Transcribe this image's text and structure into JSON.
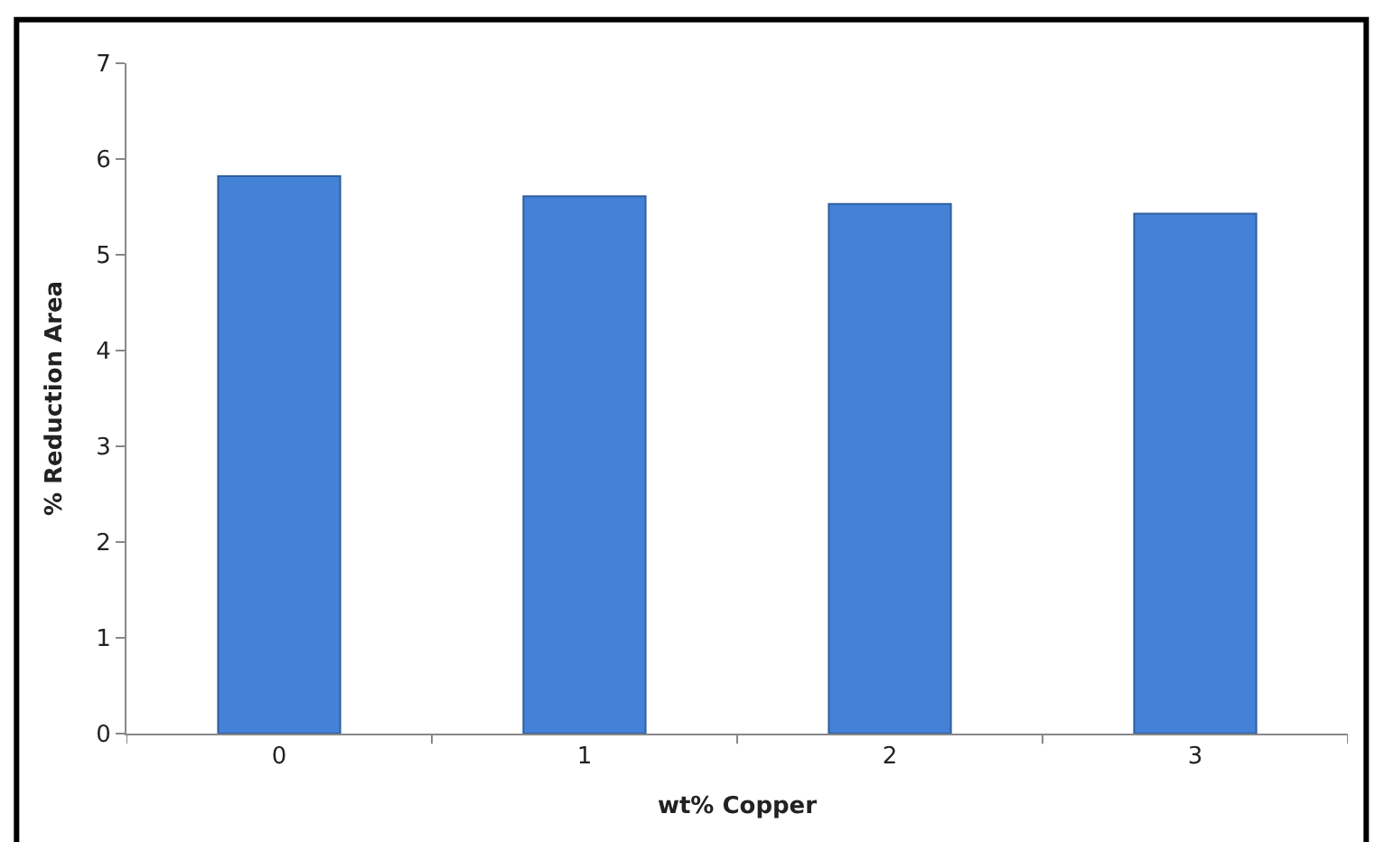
{
  "chart_data": {
    "type": "bar",
    "xlabel": "wt% Copper",
    "ylabel": "% Reduction Area",
    "categories": [
      "0",
      "1",
      "2",
      "3"
    ],
    "values": [
      5.82,
      5.61,
      5.53,
      5.43
    ],
    "color": "#4382d6",
    "ylim": [
      0,
      7
    ],
    "yticks": [
      0,
      1,
      2,
      3,
      4,
      5,
      6,
      7
    ]
  }
}
